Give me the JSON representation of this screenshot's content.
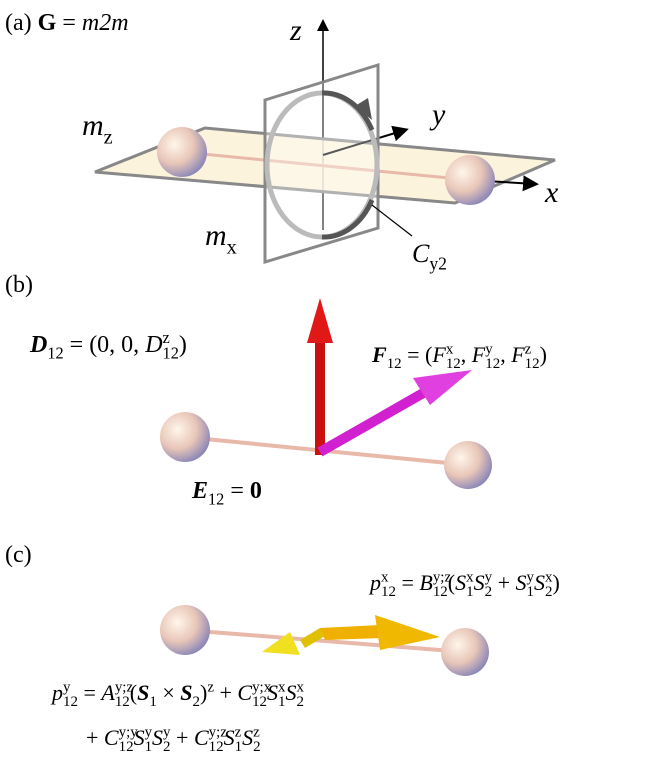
{
  "labels": [
    [
      [
        "(a) ",
        "r"
      ],
      [
        "G",
        "b"
      ],
      [
        " = ",
        "r"
      ],
      [
        "m2m",
        "i"
      ]
    ],
    [
      [
        "z",
        "i"
      ]
    ],
    [
      [
        "y",
        "i"
      ]
    ],
    [
      [
        "x",
        "i"
      ]
    ],
    [
      [
        "m",
        "i"
      ],
      [
        "z",
        "sub"
      ]
    ],
    [
      [
        "m",
        "i"
      ],
      [
        "x",
        "sub"
      ]
    ],
    [
      [
        "C",
        "i"
      ],
      [
        "y2",
        "sub"
      ]
    ],
    [
      [
        "(b)",
        "r"
      ]
    ],
    [
      [
        "D",
        "bi"
      ],
      [
        "12",
        "sub"
      ],
      [
        " = (0, 0, ",
        "r"
      ],
      [
        "D",
        "i"
      ],
      [
        "z",
        "sup"
      ],
      [
        "12",
        "sub"
      ],
      [
        ")",
        "r"
      ]
    ],
    [
      [
        "F",
        "bi"
      ],
      [
        "12",
        "sub"
      ],
      [
        " = (",
        "r"
      ],
      [
        "F",
        "i"
      ],
      [
        "x",
        "sup"
      ],
      [
        "12",
        "sub"
      ],
      [
        ", ",
        "r"
      ],
      [
        "F",
        "i"
      ],
      [
        "y",
        "sup"
      ],
      [
        "12",
        "sub"
      ],
      [
        ", ",
        "r"
      ],
      [
        "F",
        "i"
      ],
      [
        "z",
        "sup"
      ],
      [
        "12",
        "sub"
      ],
      [
        ")",
        "r"
      ]
    ],
    [
      [
        "E",
        "bi"
      ],
      [
        "12",
        "sub"
      ],
      [
        " = ",
        "r"
      ],
      [
        "0",
        "b"
      ]
    ],
    [
      [
        "(c)",
        "r"
      ]
    ],
    [
      [
        "p",
        "i"
      ],
      [
        "x",
        "sup"
      ],
      [
        "12",
        "sub"
      ],
      [
        " = ",
        "r"
      ],
      [
        "B",
        "i"
      ],
      [
        "y;z",
        "sup"
      ],
      [
        "12",
        "sub"
      ],
      [
        "(",
        "r"
      ],
      [
        "S",
        "i"
      ],
      [
        "x",
        "sup"
      ],
      [
        "1",
        "sub"
      ],
      [
        "S",
        "i"
      ],
      [
        "y",
        "sup"
      ],
      [
        "2",
        "sub"
      ],
      [
        " + ",
        "r"
      ],
      [
        "S",
        "i"
      ],
      [
        "y",
        "sup"
      ],
      [
        "1",
        "sub"
      ],
      [
        "S",
        "i"
      ],
      [
        "x",
        "sup"
      ],
      [
        "2",
        "sub"
      ],
      [
        ")",
        "r"
      ]
    ],
    [
      [
        "p",
        "i"
      ],
      [
        "y",
        "sup"
      ],
      [
        "12",
        "sub"
      ],
      [
        " = ",
        "r"
      ],
      [
        "A",
        "i"
      ],
      [
        "y;z",
        "sup"
      ],
      [
        "12",
        "sub"
      ],
      [
        "(",
        "r"
      ],
      [
        "S",
        "bi"
      ],
      [
        "1",
        "sub"
      ],
      [
        " × ",
        "r"
      ],
      [
        "S",
        "bi"
      ],
      [
        "2",
        "sub"
      ],
      [
        ")",
        "r"
      ],
      [
        "z",
        "sup"
      ],
      [
        " + ",
        "r"
      ],
      [
        "C",
        "i"
      ],
      [
        "y;x",
        "sup"
      ],
      [
        "12",
        "sub"
      ],
      [
        "S",
        "i"
      ],
      [
        "x",
        "sup"
      ],
      [
        "1",
        "sub"
      ],
      [
        "S",
        "i"
      ],
      [
        "x",
        "sup"
      ],
      [
        "2",
        "sub"
      ]
    ],
    [
      [
        "+ ",
        "r"
      ],
      [
        "C",
        "i"
      ],
      [
        "y;y",
        "sup"
      ],
      [
        "12",
        "sub"
      ],
      [
        "S",
        "i"
      ],
      [
        "y",
        "sup"
      ],
      [
        "1",
        "sub"
      ],
      [
        "S",
        "i"
      ],
      [
        "y",
        "sup"
      ],
      [
        "2",
        "sub"
      ],
      [
        " + ",
        "r"
      ],
      [
        "C",
        "i"
      ],
      [
        "y;z",
        "sup"
      ],
      [
        "12",
        "sub"
      ],
      [
        "S",
        "i"
      ],
      [
        "z",
        "sup"
      ],
      [
        "1",
        "sub"
      ],
      [
        "S",
        "i"
      ],
      [
        "z",
        "sup"
      ],
      [
        "2",
        "sub"
      ]
    ]
  ]
}
